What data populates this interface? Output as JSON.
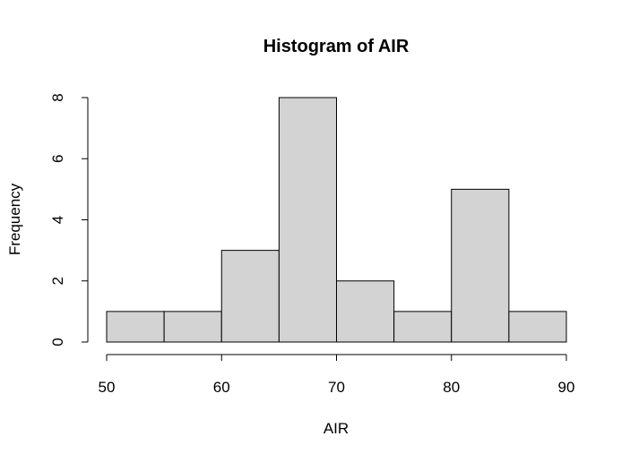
{
  "chart_data": {
    "type": "bar",
    "title": "Histogram of AIR",
    "xlabel": "AIR",
    "ylabel": "Frequency",
    "bins": [
      {
        "from": 50,
        "to": 55,
        "count": 1
      },
      {
        "from": 55,
        "to": 60,
        "count": 1
      },
      {
        "from": 60,
        "to": 65,
        "count": 3
      },
      {
        "from": 65,
        "to": 70,
        "count": 8
      },
      {
        "from": 70,
        "to": 75,
        "count": 2
      },
      {
        "from": 75,
        "to": 80,
        "count": 1
      },
      {
        "from": 80,
        "to": 85,
        "count": 5
      },
      {
        "from": 85,
        "to": 90,
        "count": 1
      }
    ],
    "xlim": [
      50,
      90
    ],
    "ylim": [
      0,
      8
    ],
    "x_ticks": [
      "50",
      "60",
      "70",
      "80",
      "90"
    ],
    "y_ticks": [
      "0",
      "2",
      "4",
      "6",
      "8"
    ],
    "bar_color": "#d3d3d3",
    "grid": false
  }
}
